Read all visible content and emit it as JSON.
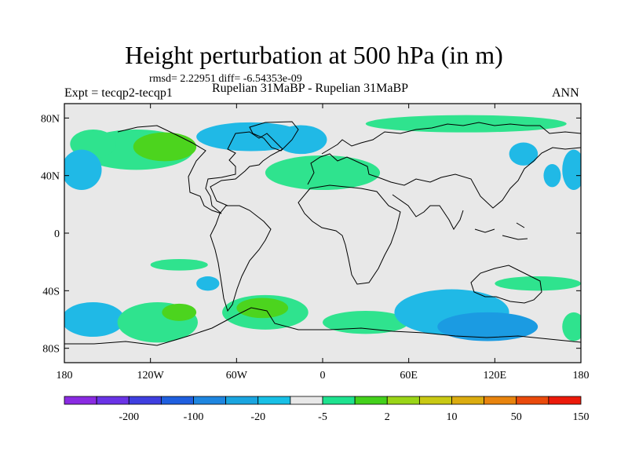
{
  "title": "Height perturbation at 500 hPa (in m)",
  "stats": "rmsd= 2.22951 diff= -6.54353e-09",
  "experiment": "Expt = tecqp2-tecqp1",
  "comparison": "Rupelian  31MaBP - Rupelian  31MaBP",
  "period": "ANN",
  "map": {
    "projection": "cylindrical equidistant",
    "lon_range": [
      -180,
      180
    ],
    "lat_range": [
      -90,
      90
    ],
    "y_ticks": [
      {
        "lat": 80,
        "label": "80N"
      },
      {
        "lat": 40,
        "label": "40N"
      },
      {
        "lat": 0,
        "label": "0"
      },
      {
        "lat": -40,
        "label": "40S"
      },
      {
        "lat": -80,
        "label": "80S"
      }
    ],
    "x_ticks": [
      {
        "lon": -180,
        "label": "180"
      },
      {
        "lon": -120,
        "label": "120W"
      },
      {
        "lon": -60,
        "label": "60W"
      },
      {
        "lon": 0,
        "label": "0"
      },
      {
        "lon": 60,
        "label": "60E"
      },
      {
        "lon": 120,
        "label": "120E"
      },
      {
        "lon": 180,
        "label": "180"
      }
    ]
  },
  "colorbar": {
    "colors": [
      "#8a2be2",
      "#6a33e6",
      "#3f3fe0",
      "#1f5fdf",
      "#1e86e0",
      "#1aa5e0",
      "#18c0e6",
      "#e8e8e8",
      "#1ee28f",
      "#43d11b",
      "#9ad517",
      "#c9c914",
      "#dbac10",
      "#e8840e",
      "#ea4a0c",
      "#ec1a0a"
    ],
    "labels": [
      {
        "after_index": 1,
        "text": "-200"
      },
      {
        "after_index": 3,
        "text": "-100"
      },
      {
        "after_index": 5,
        "text": "-20"
      },
      {
        "after_index": 7,
        "text": "-5"
      },
      {
        "after_index": 9,
        "text": "2"
      },
      {
        "after_index": 11,
        "text": "10"
      },
      {
        "after_index": 13,
        "text": "50"
      },
      {
        "after_index": 15,
        "text": "150"
      }
    ]
  },
  "fields": {
    "colors": {
      "positive": "#2fe38e",
      "strong_positive": "#4cd41e",
      "negative": "#20b9e6",
      "strong_negative": "#1b9be2",
      "background": "#e8e8e8"
    },
    "regions": [
      {
        "lon": -130,
        "lat": 58,
        "rlon": 40,
        "rlat": 14,
        "level": "positive"
      },
      {
        "lon": -110,
        "lat": 60,
        "rlon": 22,
        "rlat": 10,
        "level": "strong_positive"
      },
      {
        "lon": -160,
        "lat": 62,
        "rlon": 16,
        "rlat": 10,
        "level": "positive"
      },
      {
        "lon": -50,
        "lat": 67,
        "rlon": 38,
        "rlat": 10,
        "level": "negative"
      },
      {
        "lon": -15,
        "lat": 65,
        "rlon": 18,
        "rlat": 10,
        "level": "negative"
      },
      {
        "lon": 0,
        "lat": 42,
        "rlon": 40,
        "rlat": 12,
        "level": "positive"
      },
      {
        "lon": 100,
        "lat": 76,
        "rlon": 70,
        "rlat": 6,
        "level": "positive"
      },
      {
        "lon": -168,
        "lat": 44,
        "rlon": 14,
        "rlat": 14,
        "level": "negative"
      },
      {
        "lon": 175,
        "lat": 44,
        "rlon": 8,
        "rlat": 14,
        "level": "negative"
      },
      {
        "lon": -160,
        "lat": -60,
        "rlon": 22,
        "rlat": 12,
        "level": "negative"
      },
      {
        "lon": -115,
        "lat": -62,
        "rlon": 28,
        "rlat": 14,
        "level": "positive"
      },
      {
        "lon": -100,
        "lat": -55,
        "rlon": 12,
        "rlat": 6,
        "level": "strong_positive"
      },
      {
        "lon": -40,
        "lat": -55,
        "rlon": 30,
        "rlat": 12,
        "level": "positive"
      },
      {
        "lon": -42,
        "lat": -52,
        "rlon": 18,
        "rlat": 7,
        "level": "strong_positive"
      },
      {
        "lon": 30,
        "lat": -62,
        "rlon": 30,
        "rlat": 8,
        "level": "positive"
      },
      {
        "lon": 90,
        "lat": -55,
        "rlon": 40,
        "rlat": 16,
        "level": "negative"
      },
      {
        "lon": 115,
        "lat": -65,
        "rlon": 35,
        "rlat": 10,
        "level": "strong_negative"
      },
      {
        "lon": 150,
        "lat": -35,
        "rlon": 30,
        "rlat": 5,
        "level": "positive"
      },
      {
        "lon": 175,
        "lat": -65,
        "rlon": 8,
        "rlat": 10,
        "level": "positive"
      },
      {
        "lon": -80,
        "lat": -35,
        "rlon": 8,
        "rlat": 5,
        "level": "negative"
      },
      {
        "lon": -100,
        "lat": -22,
        "rlon": 20,
        "rlat": 4,
        "level": "positive"
      },
      {
        "lon": 140,
        "lat": 55,
        "rlon": 10,
        "rlat": 8,
        "level": "negative"
      },
      {
        "lon": 160,
        "lat": 40,
        "rlon": 6,
        "rlat": 8,
        "level": "negative"
      }
    ]
  }
}
